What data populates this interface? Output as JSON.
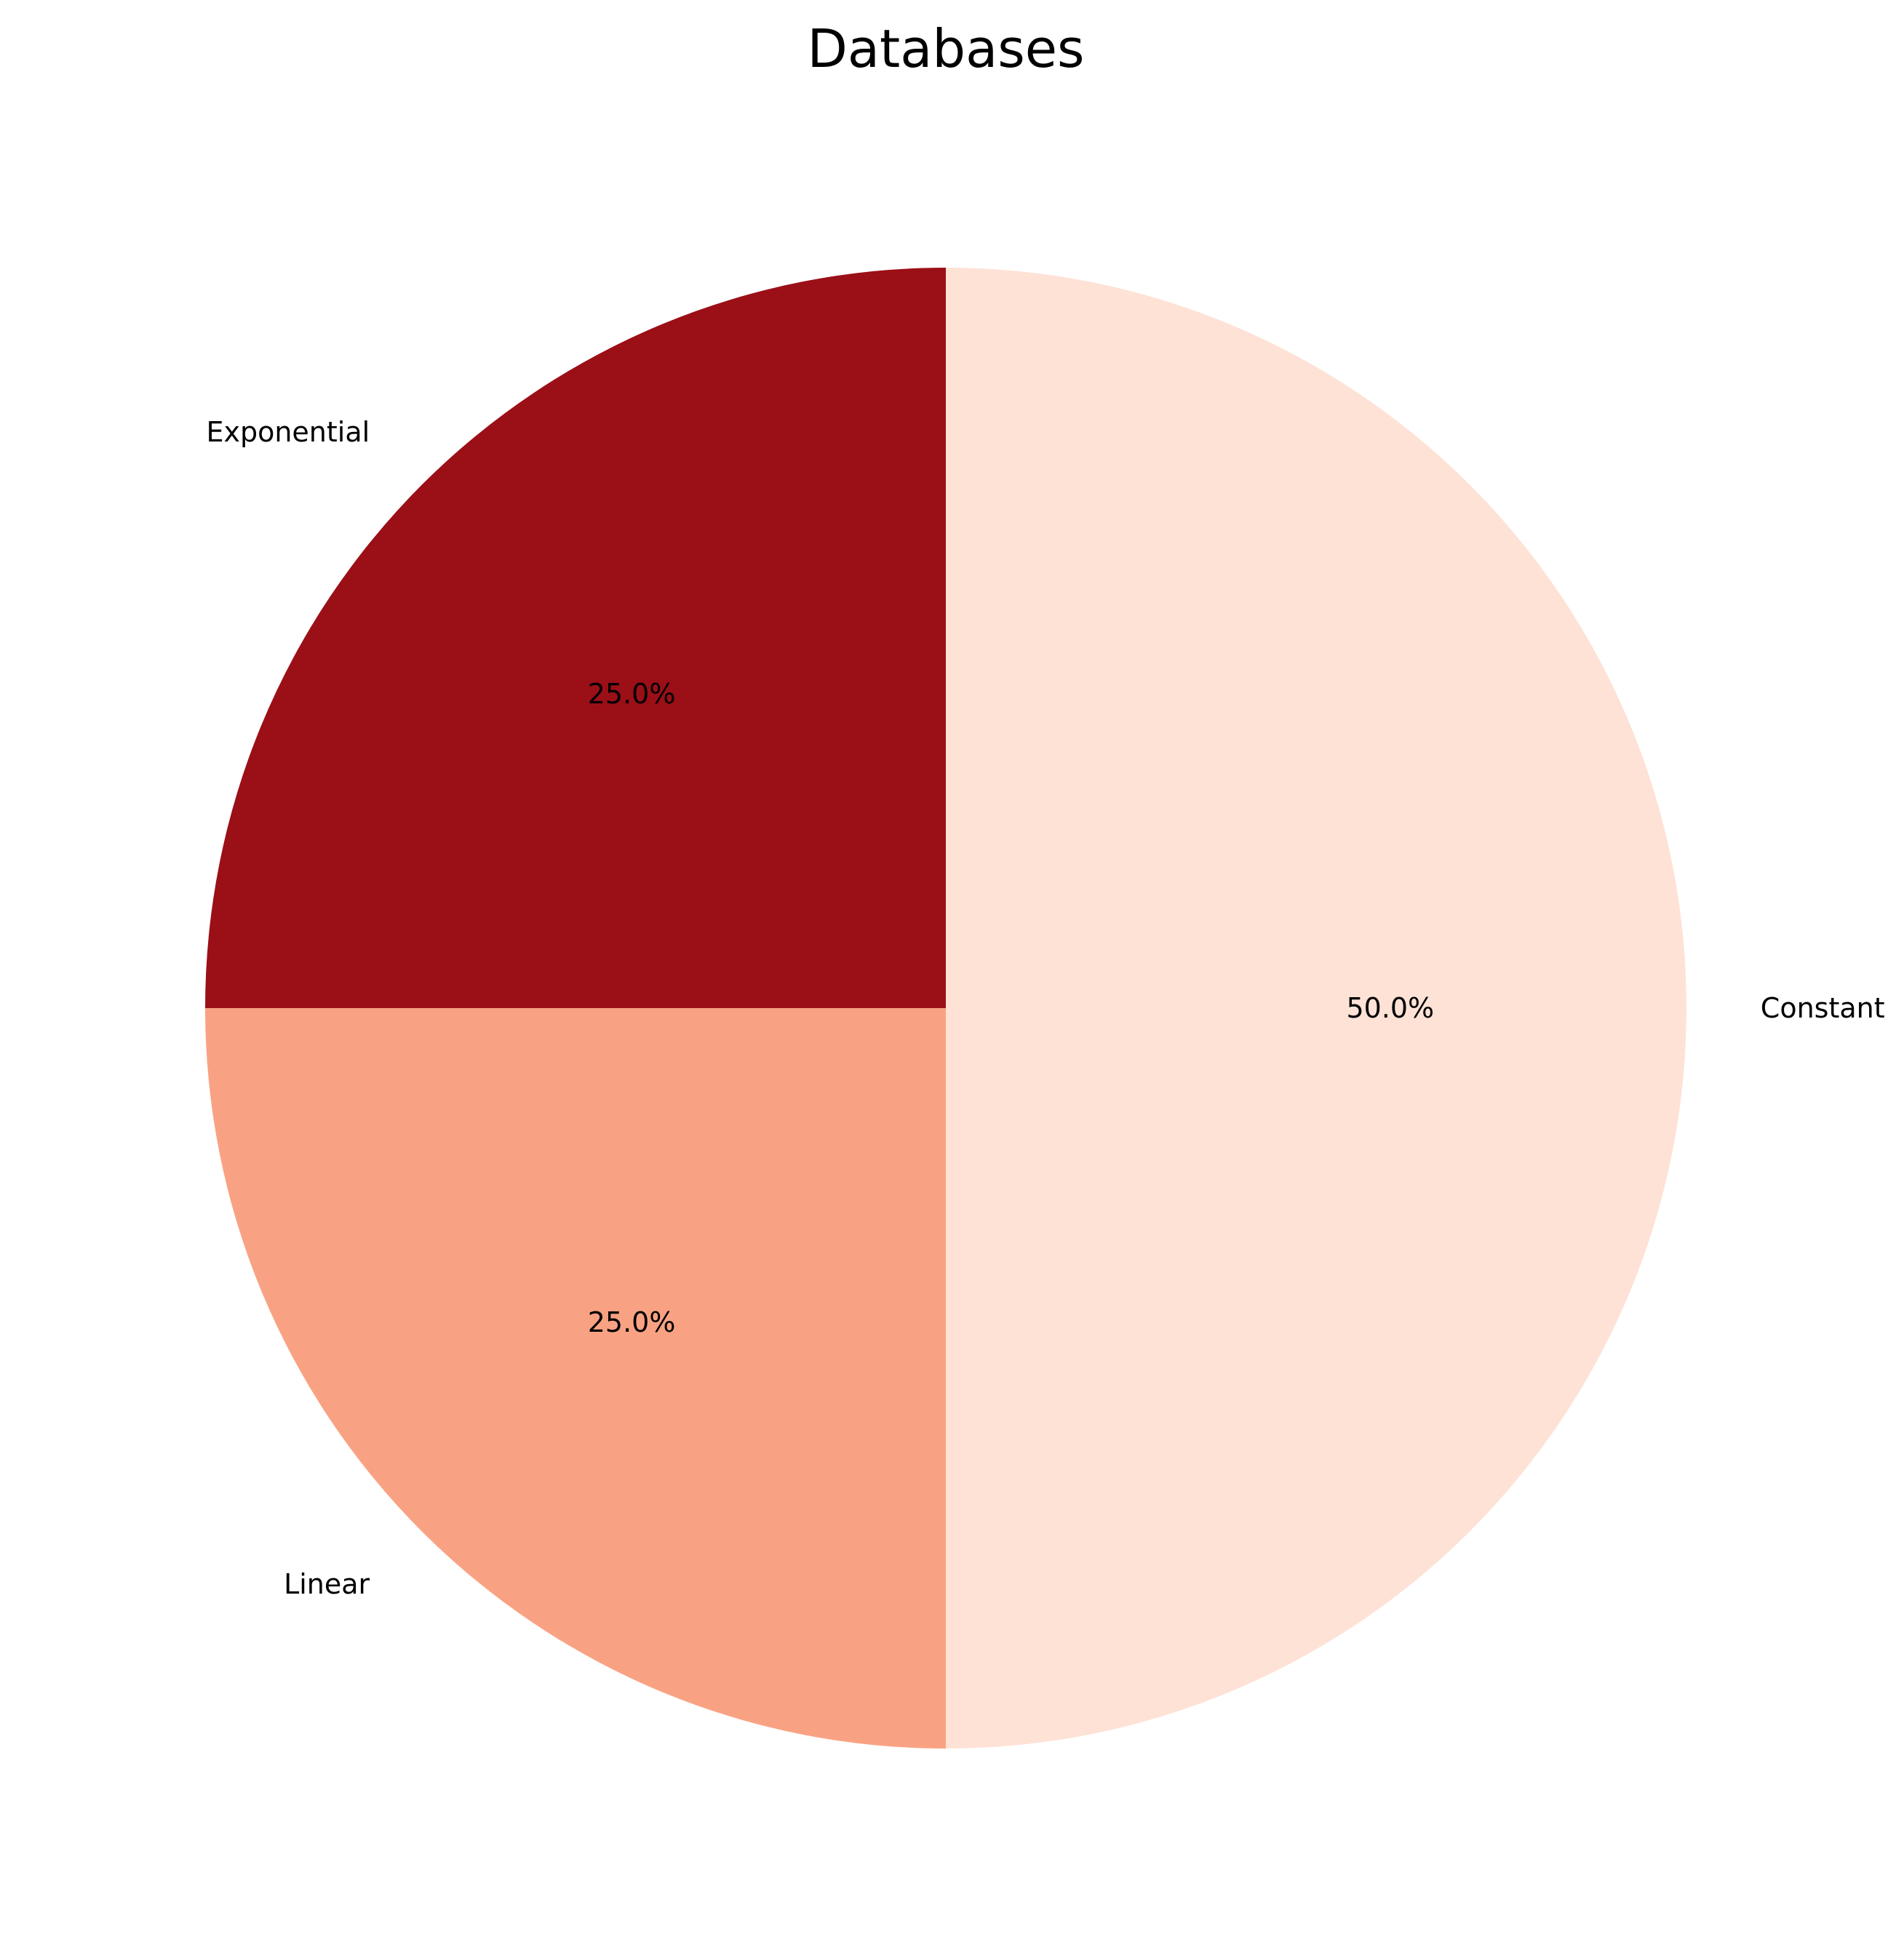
{
  "chart_data": {
    "type": "pie",
    "title": "Databases",
    "slices": [
      {
        "label": "Exponential",
        "value": 25,
        "pct_label": "25.0%",
        "color": "#9b0f17"
      },
      {
        "label": "Linear",
        "value": 25,
        "pct_label": "25.0%",
        "color": "#f9a283"
      },
      {
        "label": "Constant",
        "value": 50,
        "pct_label": "50.0%",
        "color": "#fee2d6"
      }
    ],
    "start_angle_deg": 90,
    "direction": "counterclockwise",
    "legend": "none"
  }
}
